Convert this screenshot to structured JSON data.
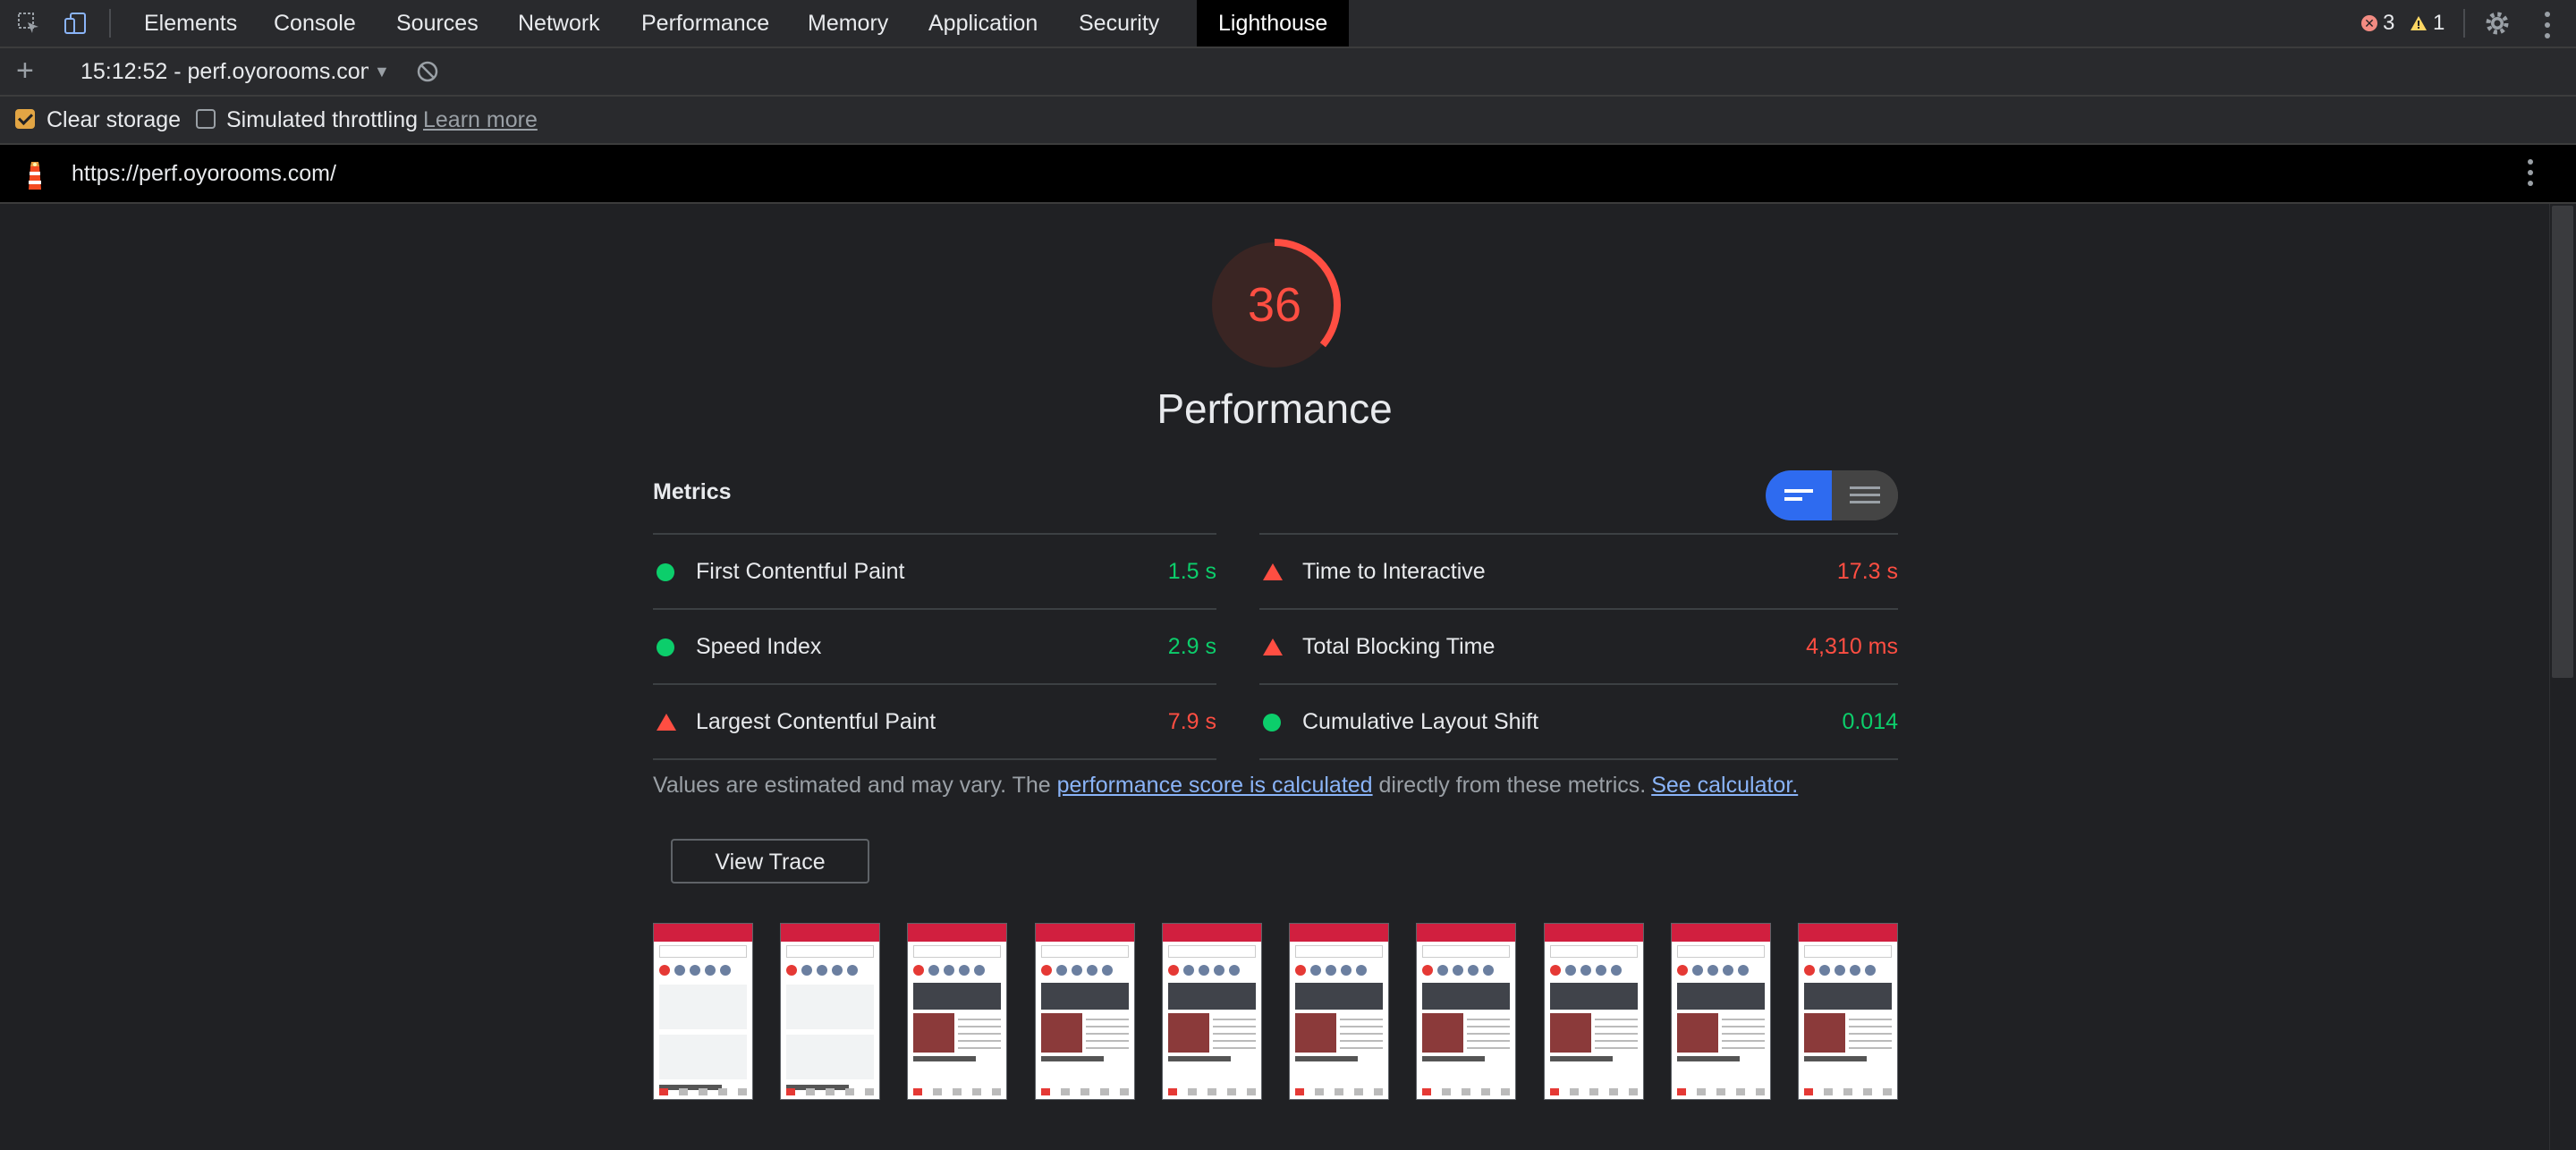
{
  "devtools": {
    "tabs": [
      {
        "label": "Elements"
      },
      {
        "label": "Console"
      },
      {
        "label": "Sources"
      },
      {
        "label": "Network"
      },
      {
        "label": "Performance"
      },
      {
        "label": "Memory"
      },
      {
        "label": "Application"
      },
      {
        "label": "Security"
      },
      {
        "label": "Lighthouse",
        "active": true
      }
    ],
    "errors_count": "3",
    "warnings_count": "1"
  },
  "lighthouse": {
    "report_selector": "15:12:52 - perf.oyorooms.com",
    "options": {
      "clear_storage_label": "Clear storage",
      "clear_storage_checked": true,
      "simulated_throttling_label": "Simulated throttling",
      "simulated_throttling_checked": false,
      "learn_more": "Learn more"
    },
    "url": "https://perf.oyorooms.com/"
  },
  "report": {
    "score": "36",
    "score_fraction": 0.36,
    "score_color": "#ff4e42",
    "category_title": "Performance",
    "metrics_heading": "Metrics",
    "metrics": [
      {
        "name": "First Contentful Paint",
        "value": "1.5 s",
        "status": "pass"
      },
      {
        "name": "Time to Interactive",
        "value": "17.3 s",
        "status": "fail"
      },
      {
        "name": "Speed Index",
        "value": "2.9 s",
        "status": "pass"
      },
      {
        "name": "Total Blocking Time",
        "value": "4,310 ms",
        "status": "fail"
      },
      {
        "name": "Largest Contentful Paint",
        "value": "7.9 s",
        "status": "fail"
      },
      {
        "name": "Cumulative Layout Shift",
        "value": "0.014",
        "status": "pass"
      }
    ],
    "note_prefix": "Values are estimated and may vary. The ",
    "note_link": "performance score is calculated",
    "note_mid": " directly from these metrics.",
    "note_link2": "See calculator.",
    "view_trace": "View Trace",
    "filmstrip_frames": 10
  },
  "colors": {
    "pass": "#0cce6b",
    "fail": "#ff4e42",
    "accent": "#2e6bf0"
  }
}
